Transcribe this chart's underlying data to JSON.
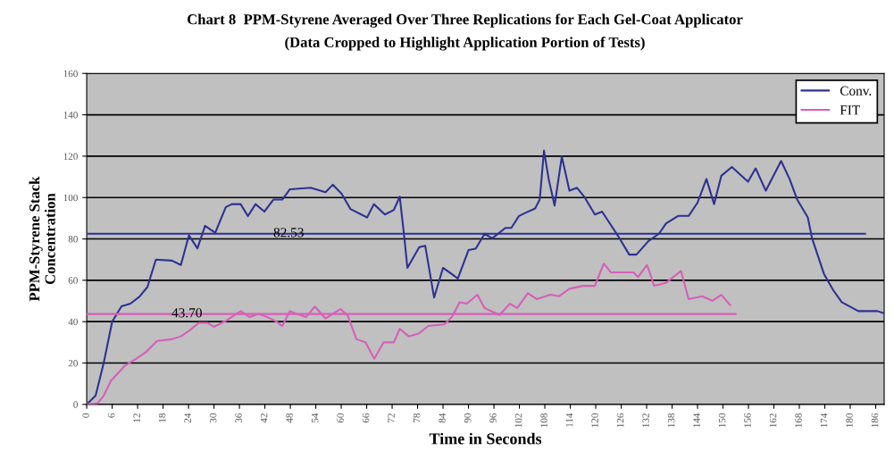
{
  "chart_data": {
    "type": "line",
    "title": "Chart 8  PPM-Styrene Averaged Over Three Replications for Each Gel-Coat Applicator",
    "subtitle": "(Data Cropped to Highlight Application Portion of Tests)",
    "xlabel": "Time in Seconds",
    "ylabel": "PPM-Styrene Stack\nConcentration",
    "xlim": [
      0,
      188
    ],
    "xticks": [
      0,
      6,
      12,
      18,
      24,
      30,
      36,
      42,
      48,
      54,
      60,
      66,
      72,
      78,
      84,
      90,
      96,
      102,
      108,
      114,
      120,
      126,
      132,
      138,
      144,
      150,
      156,
      162,
      168,
      174,
      180,
      186
    ],
    "ylim": [
      0,
      160
    ],
    "yticks": [
      0,
      20,
      40,
      60,
      80,
      100,
      120,
      140,
      160
    ],
    "grid": "y",
    "legend": "top right",
    "series": [
      {
        "name": "Conv.",
        "color": "#2e3192",
        "x": [
          0,
          2.1,
          4,
          6,
          8.2,
          10.3,
          12.4,
          14.3,
          16.3,
          20.1,
          22.2,
          24.1,
          26.1,
          27.9,
          30.3,
          32.8,
          34.2,
          36.3,
          38,
          39.8,
          41.9,
          44,
          46.1,
          47.9,
          52.8,
          56.3,
          58,
          60.1,
          62.2,
          66.1,
          67.7,
          70.3,
          72.4,
          73.8,
          74.9,
          75.6,
          78.4,
          79.8,
          81.9,
          84,
          87.5,
          90,
          91.7,
          93.8,
          95.6,
          98.7,
          100.1,
          101.9,
          103.3,
          105.7,
          106.8,
          107.8,
          108.9,
          110.3,
          112,
          113.8,
          115.6,
          117.3,
          119.8,
          121.5,
          125.4,
          127.9,
          129.6,
          132.4,
          134.9,
          136.6,
          139.4,
          141.9,
          144,
          146.1,
          147.9,
          149.6,
          152.1,
          155.9,
          157.7,
          160.1,
          163.7,
          165.7,
          167.5,
          170,
          171,
          173.8,
          176,
          178,
          181.9,
          186.4,
          187.9
        ],
        "values": [
          0,
          4.2,
          20,
          40,
          47.4,
          48.7,
          52,
          56.7,
          70,
          69.5,
          67.4,
          81.7,
          75.4,
          86.3,
          83,
          95.4,
          96.8,
          96.8,
          91,
          96.8,
          93.2,
          99,
          99,
          104,
          104.7,
          102.6,
          106.2,
          101.8,
          94.4,
          90.4,
          96.8,
          91.8,
          94,
          100.4,
          80.3,
          66,
          76,
          76.7,
          51.6,
          66,
          60.9,
          74.6,
          75.3,
          82.5,
          80.3,
          85.3,
          85.3,
          91.1,
          92.5,
          94.7,
          99,
          122.7,
          109,
          96.1,
          119.8,
          103.3,
          104.7,
          100.4,
          91.8,
          93.2,
          81,
          72.4,
          72.4,
          78.9,
          82.5,
          87.5,
          91.1,
          91.1,
          97.5,
          109,
          96.8,
          110.5,
          114.8,
          107.6,
          114.1,
          103.3,
          117.7,
          109,
          99,
          90.4,
          80.3,
          63.1,
          55.2,
          49.4,
          45.1,
          45.1,
          44.1
        ]
      },
      {
        "name": "FIT",
        "color": "#d65fb8",
        "x": [
          0,
          2.6,
          4,
          5.7,
          8.9,
          11.7,
          13.8,
          16.6,
          20.1,
          22.2,
          24.3,
          26.4,
          28.5,
          30,
          32.8,
          36.3,
          38.4,
          40.5,
          42.6,
          44.7,
          46.1,
          47.9,
          49.6,
          51.7,
          53.8,
          56.3,
          59.8,
          61.5,
          63.6,
          65.7,
          67.8,
          70,
          72.4,
          73.8,
          75.9,
          78.4,
          80.5,
          84.3,
          86.1,
          87.9,
          89.6,
          92.1,
          93.8,
          97.3,
          99.8,
          101.5,
          104,
          106.1,
          109.3,
          111.4,
          113.8,
          117,
          119.8,
          121.9,
          123.6,
          128.9,
          130,
          132.1,
          133.8,
          136.6,
          140.1,
          141.9,
          145.1,
          147.5,
          149.6,
          151.7
        ],
        "values": [
          0,
          0.6,
          4.2,
          11.4,
          18.5,
          22.1,
          25,
          30.7,
          31.5,
          32.9,
          35.8,
          39.4,
          39.4,
          37.5,
          40.4,
          45.1,
          42.2,
          43.7,
          42.2,
          40.1,
          37.9,
          45.1,
          43.7,
          42.2,
          47.3,
          41.5,
          46.1,
          43,
          31.5,
          30,
          22.1,
          30,
          30,
          36.5,
          32.9,
          34.4,
          37.9,
          38.7,
          42.2,
          49.4,
          48.7,
          53,
          46.6,
          43.2,
          48.7,
          46.6,
          53.7,
          50.9,
          53,
          52.3,
          55.9,
          57.3,
          57.3,
          68.1,
          63.8,
          63.8,
          61.6,
          67.4,
          57.3,
          58.8,
          64.5,
          50.9,
          52.3,
          50.1,
          53,
          48
        ]
      },
      {
        "color": "#2e3192",
        "x": [
          0,
          183.5
        ],
        "values": [
          82.53,
          82.53
        ]
      },
      {
        "color": "#d65fb8",
        "x": [
          0,
          153
        ],
        "values": [
          43.7,
          43.7
        ]
      }
    ],
    "annotations": [
      {
        "text": "82.53",
        "x": 44,
        "y": 82.53
      },
      {
        "text": "43.70",
        "x": 20,
        "y": 43.7
      }
    ]
  }
}
